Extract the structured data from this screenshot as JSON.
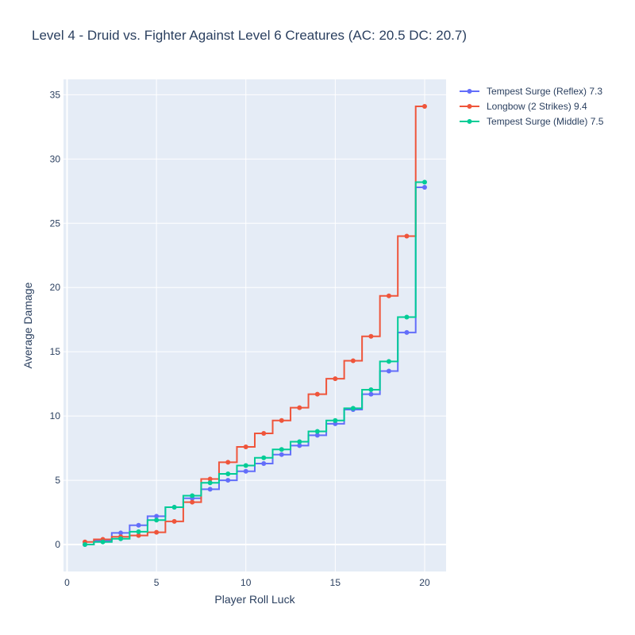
{
  "chart_data": {
    "type": "line",
    "title": "Level 4 - Druid vs. Fighter Against Level 6 Creatures (AC: 20.5 DC: 20.7)",
    "xlabel": "Player Roll Luck",
    "ylabel": "Average Damage",
    "xlim": [
      -0.2,
      21.2
    ],
    "ylim": [
      -2.1,
      36.2
    ],
    "x_ticks": [
      0,
      5,
      10,
      15,
      20
    ],
    "y_ticks": [
      0,
      5,
      10,
      15,
      20,
      25,
      30,
      35
    ],
    "step_shape": "hvh",
    "grid": true,
    "legend_position": "top-right",
    "x": [
      1,
      2,
      3,
      4,
      5,
      6,
      7,
      8,
      9,
      10,
      11,
      12,
      13,
      14,
      15,
      16,
      17,
      18,
      19,
      20
    ],
    "series": [
      {
        "name": "Tempest Surge (Reflex) 7.3",
        "color": "#636efa",
        "values": [
          0.0,
          0.3,
          0.9,
          1.5,
          2.2,
          2.9,
          3.6,
          4.3,
          5.0,
          5.7,
          6.3,
          7.0,
          7.7,
          8.5,
          9.4,
          10.5,
          11.7,
          13.5,
          16.5,
          27.8
        ]
      },
      {
        "name": "Longbow (2 Strikes) 9.4",
        "color": "#ef553b",
        "values": [
          0.2,
          0.4,
          0.6,
          0.7,
          0.95,
          1.8,
          3.3,
          5.1,
          6.4,
          7.6,
          8.65,
          9.65,
          10.65,
          11.7,
          12.9,
          14.3,
          16.2,
          19.35,
          24.0,
          34.1
        ]
      },
      {
        "name": "Tempest Surge (Middle) 7.5",
        "color": "#00cc96",
        "values": [
          0.0,
          0.2,
          0.45,
          1.0,
          1.9,
          2.9,
          3.8,
          4.8,
          5.5,
          6.15,
          6.75,
          7.4,
          8.0,
          8.8,
          9.65,
          10.6,
          12.05,
          14.25,
          17.7,
          28.2
        ]
      }
    ]
  }
}
